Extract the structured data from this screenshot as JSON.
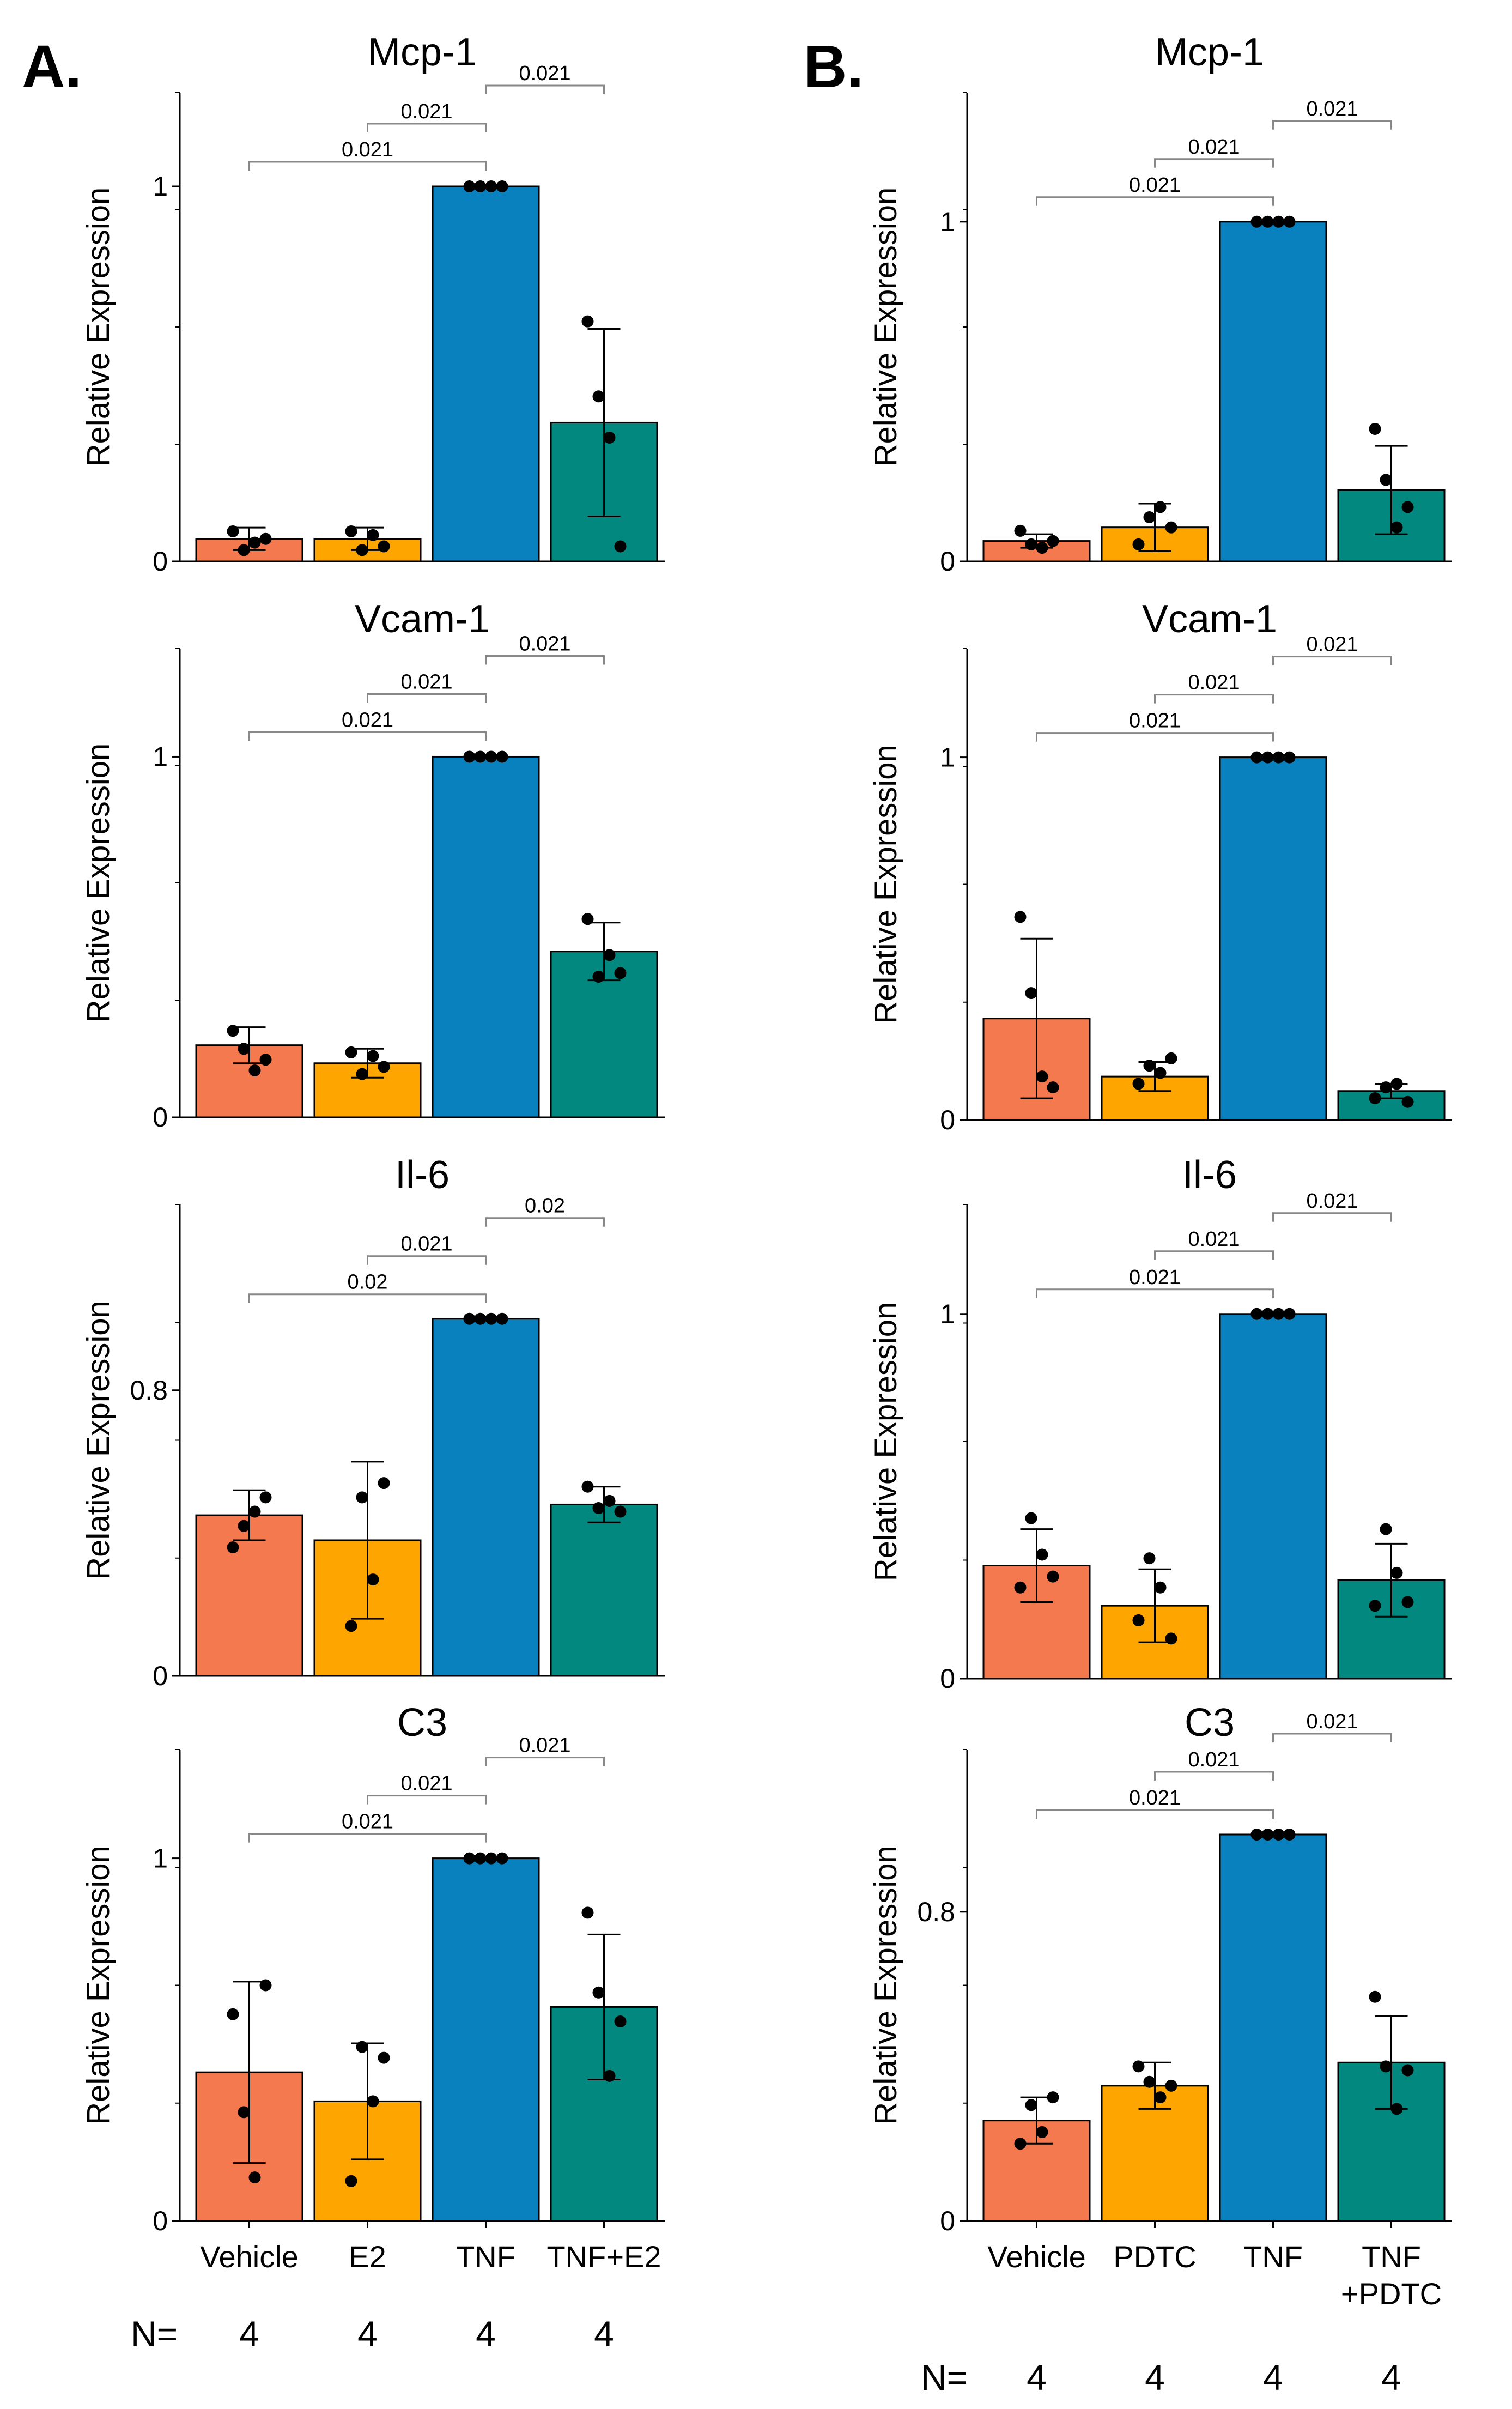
{
  "panel_labels": [
    "A.",
    "B."
  ],
  "n_label": "N=",
  "colors": {
    "Vehicle": "#F4794E",
    "Treatment": "#FFA500",
    "TNF": "#0A81BF",
    "Combo": "#02887E"
  },
  "chart_data": [
    {
      "type": "bar",
      "panel": "A.",
      "title": "Mcp-1",
      "ylabel": "Relative Expression",
      "ylim": [
        0,
        1.25
      ],
      "yticks": [
        0,
        1
      ],
      "categories": [
        "Vehicle",
        "E2",
        "TNF",
        "TNF+E2"
      ],
      "values": [
        0.06,
        0.06,
        1.0,
        0.37
      ],
      "error": [
        0.03,
        0.03,
        0.003,
        0.25
      ],
      "points": [
        [
          0.08,
          0.03,
          0.05,
          0.06
        ],
        [
          0.08,
          0.03,
          0.07,
          0.04
        ],
        [
          1.0,
          1.0,
          1.0,
          1.0
        ],
        [
          0.64,
          0.44,
          0.33,
          0.04
        ]
      ],
      "comparisons": [
        {
          "from": 2,
          "to": 3,
          "p": "0.021"
        },
        {
          "from": 1,
          "to": 2,
          "p": "0.021"
        },
        {
          "from": 0,
          "to": 2,
          "p": "0.021"
        }
      ],
      "n": [
        "4",
        "4",
        "4",
        "4"
      ]
    },
    {
      "type": "bar",
      "panel": "A.",
      "title": "Vcam-1",
      "ylabel": "Relative Expression",
      "ylim": [
        0,
        1.3
      ],
      "yticks": [
        0,
        1
      ],
      "categories": [
        "Vehicle",
        "E2",
        "TNF",
        "TNF+E2"
      ],
      "values": [
        0.2,
        0.15,
        1.0,
        0.46
      ],
      "error": [
        0.05,
        0.04,
        0.003,
        0.08
      ],
      "points": [
        [
          0.24,
          0.19,
          0.13,
          0.16
        ],
        [
          0.18,
          0.12,
          0.17,
          0.14
        ],
        [
          1.0,
          1.0,
          1.0,
          1.0
        ],
        [
          0.55,
          0.39,
          0.45,
          0.4
        ]
      ],
      "comparisons": [
        {
          "from": 2,
          "to": 3,
          "p": "0.021"
        },
        {
          "from": 1,
          "to": 2,
          "p": "0.021"
        },
        {
          "from": 0,
          "to": 2,
          "p": "0.021"
        }
      ],
      "n": [
        "4",
        "4",
        "4",
        "4"
      ]
    },
    {
      "type": "bar",
      "panel": "A.",
      "title": "Il-6",
      "ylabel": "Relative Expression",
      "ylim": [
        0,
        1.32
      ],
      "yticks": [
        0,
        0.8
      ],
      "categories": [
        "Vehicle",
        "E2",
        "TNF",
        "TNF+E2"
      ],
      "values": [
        0.45,
        0.38,
        1.0,
        0.48
      ],
      "error": [
        0.07,
        0.22,
        0.003,
        0.05
      ],
      "points": [
        [
          0.36,
          0.42,
          0.46,
          0.5
        ],
        [
          0.14,
          0.5,
          0.27,
          0.54
        ],
        [
          1.0,
          1.0,
          1.0,
          1.0
        ],
        [
          0.53,
          0.47,
          0.49,
          0.46
        ]
      ],
      "comparisons": [
        {
          "from": 2,
          "to": 3,
          "p": "0.02"
        },
        {
          "from": 1,
          "to": 2,
          "p": "0.021"
        },
        {
          "from": 0,
          "to": 2,
          "p": "0.02"
        }
      ],
      "n": [
        "4",
        "4",
        "4",
        "4"
      ]
    },
    {
      "type": "bar",
      "panel": "A.",
      "title": "C3",
      "ylabel": "Relative Expression",
      "ylim": [
        0,
        1.3
      ],
      "yticks": [
        0,
        1
      ],
      "categories": [
        "Vehicle",
        "E2",
        "TNF",
        "TNF+E2"
      ],
      "values": [
        0.41,
        0.33,
        1.0,
        0.59
      ],
      "error": [
        0.25,
        0.16,
        0.003,
        0.2
      ],
      "points": [
        [
          0.57,
          0.3,
          0.12,
          0.65
        ],
        [
          0.11,
          0.48,
          0.33,
          0.45
        ],
        [
          1.0,
          1.0,
          1.0,
          1.0
        ],
        [
          0.85,
          0.63,
          0.4,
          0.55
        ]
      ],
      "comparisons": [
        {
          "from": 2,
          "to": 3,
          "p": "0.021"
        },
        {
          "from": 1,
          "to": 2,
          "p": "0.021"
        },
        {
          "from": 0,
          "to": 2,
          "p": "0.021"
        }
      ],
      "n": [
        "4",
        "4",
        "4",
        "4"
      ]
    },
    {
      "type": "bar",
      "panel": "B.",
      "title": "Mcp-1",
      "ylabel": "Relative Expression",
      "ylim": [
        0,
        1.38
      ],
      "yticks": [
        0,
        1
      ],
      "categories": [
        "Vehicle",
        "PDTC",
        "TNF",
        "TNF\n+PDTC"
      ],
      "values": [
        0.06,
        0.1,
        1.0,
        0.21
      ],
      "error": [
        0.02,
        0.07,
        0.003,
        0.13
      ],
      "points": [
        [
          0.09,
          0.05,
          0.04,
          0.06
        ],
        [
          0.05,
          0.13,
          0.16,
          0.1
        ],
        [
          1.0,
          1.0,
          1.0,
          1.0
        ],
        [
          0.39,
          0.24,
          0.1,
          0.16
        ]
      ],
      "comparisons": [
        {
          "from": 2,
          "to": 3,
          "p": "0.021"
        },
        {
          "from": 1,
          "to": 2,
          "p": "0.021"
        },
        {
          "from": 0,
          "to": 2,
          "p": "0.021"
        }
      ],
      "n": [
        "4",
        "4",
        "4",
        "4"
      ]
    },
    {
      "type": "bar",
      "panel": "B.",
      "title": "Vcam-1",
      "ylabel": "Relative Expression",
      "ylim": [
        0,
        1.3
      ],
      "yticks": [
        0,
        1
      ],
      "categories": [
        "Vehicle",
        "PDTC",
        "TNF",
        "TNF\n+PDTC"
      ],
      "values": [
        0.28,
        0.12,
        1.0,
        0.08
      ],
      "error": [
        0.22,
        0.04,
        0.003,
        0.02
      ],
      "points": [
        [
          0.56,
          0.35,
          0.12,
          0.09
        ],
        [
          0.1,
          0.15,
          0.13,
          0.17
        ],
        [
          1.0,
          1.0,
          1.0,
          1.0
        ],
        [
          0.06,
          0.09,
          0.1,
          0.05
        ]
      ],
      "comparisons": [
        {
          "from": 2,
          "to": 3,
          "p": "0.021"
        },
        {
          "from": 1,
          "to": 2,
          "p": "0.021"
        },
        {
          "from": 0,
          "to": 2,
          "p": "0.021"
        }
      ],
      "n": [
        "4",
        "4",
        "4",
        "4"
      ]
    },
    {
      "type": "bar",
      "panel": "B.",
      "title": "Il-6",
      "ylabel": "Relative Expression",
      "ylim": [
        0,
        1.3
      ],
      "yticks": [
        0,
        1
      ],
      "categories": [
        "Vehicle",
        "PDTC",
        "TNF",
        "TNF\n+PDTC"
      ],
      "values": [
        0.31,
        0.2,
        1.0,
        0.27
      ],
      "error": [
        0.1,
        0.1,
        0.003,
        0.1
      ],
      "points": [
        [
          0.25,
          0.44,
          0.34,
          0.28
        ],
        [
          0.16,
          0.33,
          0.25,
          0.11
        ],
        [
          1.0,
          1.0,
          1.0,
          1.0
        ],
        [
          0.2,
          0.41,
          0.29,
          0.21
        ]
      ],
      "comparisons": [
        {
          "from": 2,
          "to": 3,
          "p": "0.021"
        },
        {
          "from": 1,
          "to": 2,
          "p": "0.021"
        },
        {
          "from": 0,
          "to": 2,
          "p": "0.021"
        }
      ],
      "n": [
        "4",
        "4",
        "4",
        "4"
      ]
    },
    {
      "type": "bar",
      "panel": "B.",
      "title": "C3",
      "ylabel": "Relative Expression",
      "ylim": [
        0,
        1.22
      ],
      "yticks": [
        0,
        0.8
      ],
      "categories": [
        "Vehicle",
        "PDTC",
        "TNF",
        "TNF\n+PDTC"
      ],
      "values": [
        0.26,
        0.35,
        1.0,
        0.41
      ],
      "error": [
        0.06,
        0.06,
        0.003,
        0.12
      ],
      "points": [
        [
          0.2,
          0.3,
          0.23,
          0.32
        ],
        [
          0.4,
          0.36,
          0.32,
          0.35
        ],
        [
          1.0,
          1.0,
          1.0,
          1.0
        ],
        [
          0.58,
          0.4,
          0.29,
          0.39
        ]
      ],
      "comparisons": [
        {
          "from": 2,
          "to": 3,
          "p": "0.021"
        },
        {
          "from": 1,
          "to": 2,
          "p": "0.021"
        },
        {
          "from": 0,
          "to": 2,
          "p": "0.021"
        }
      ],
      "n": [
        "4",
        "4",
        "4",
        "4"
      ]
    }
  ]
}
